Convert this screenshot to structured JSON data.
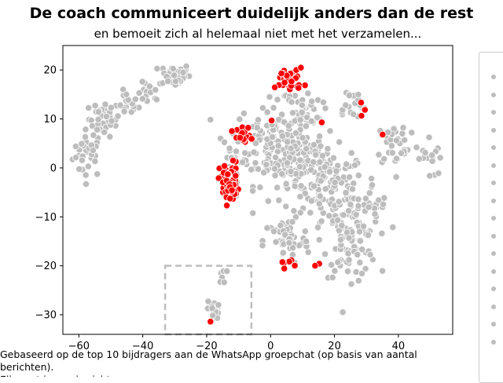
{
  "chart_data": {
    "type": "scatter",
    "title": "De coach communiceert duidelijk anders dan de rest",
    "subtitle": "en bemoeit zich al helemaal niet met het verzamelen...",
    "xlabel": "",
    "ylabel": "",
    "xlim": [
      -65,
      57
    ],
    "ylim": [
      -34,
      25
    ],
    "x_ticks": [
      "−60",
      "−40",
      "−20",
      "0",
      "20",
      "40"
    ],
    "y_ticks": [
      "−30",
      "−20",
      "−10",
      "0",
      "10",
      "20"
    ],
    "grid": false,
    "legend_placement": "right",
    "highlight_box": {
      "x": [
        -33,
        -6
      ],
      "y": [
        -20,
        -34
      ]
    },
    "colors": {
      "highlight": "#ff0000",
      "other": "#bdbdbd",
      "box": "#bdbdbd"
    },
    "series": [
      {
        "color": "#bdbdbd",
        "clusters": [
          {
            "x": -57,
            "y": 3,
            "sx": 4,
            "sy": 4,
            "n": 35
          },
          {
            "x": -52,
            "y": 10,
            "sx": 4,
            "sy": 3,
            "n": 35
          },
          {
            "x": -45,
            "y": 13,
            "sx": 3,
            "sy": 2,
            "n": 20
          },
          {
            "x": -38,
            "y": 15,
            "sx": 3,
            "sy": 2,
            "n": 15
          },
          {
            "x": -30,
            "y": 19,
            "sx": 4,
            "sy": 2,
            "n": 40
          },
          {
            "x": 0,
            "y": 5,
            "sx": 9,
            "sy": 7,
            "n": 120
          },
          {
            "x": 10,
            "y": 1,
            "sx": 9,
            "sy": 7,
            "n": 120
          },
          {
            "x": 20,
            "y": -5,
            "sx": 8,
            "sy": 7,
            "n": 100
          },
          {
            "x": 25,
            "y": -15,
            "sx": 7,
            "sy": 6,
            "n": 90
          },
          {
            "x": 5,
            "y": -15,
            "sx": 6,
            "sy": 4,
            "n": 50
          },
          {
            "x": 40,
            "y": 5,
            "sx": 6,
            "sy": 4,
            "n": 35
          },
          {
            "x": 32,
            "y": -8,
            "sx": 4,
            "sy": 4,
            "n": 25
          },
          {
            "x": 10,
            "y": 12,
            "sx": 5,
            "sy": 3,
            "n": 40
          },
          {
            "x": 25,
            "y": 13,
            "sx": 4,
            "sy": 3,
            "n": 20
          },
          {
            "x": -13,
            "y": 0,
            "sx": 3,
            "sy": 5,
            "n": 25
          },
          {
            "x": -18,
            "y": -29,
            "sx": 1.5,
            "sy": 1.5,
            "n": 22
          },
          {
            "x": -15,
            "y": -22,
            "sx": 1,
            "sy": 1.5,
            "n": 6
          },
          {
            "x": 50,
            "y": 2,
            "sx": 3,
            "sy": 4,
            "n": 15
          }
        ]
      },
      {
        "color": "#ff0000",
        "clusters": [
          {
            "x": -13,
            "y": -3,
            "sx": 2.5,
            "sy": 3.5,
            "n": 55
          },
          {
            "x": -8,
            "y": 6,
            "sx": 2,
            "sy": 2,
            "n": 15
          },
          {
            "x": 6,
            "y": 18,
            "sx": 3.5,
            "sy": 2,
            "n": 40
          },
          {
            "x": 28,
            "y": 13,
            "sx": 1.5,
            "sy": 1.5,
            "n": 3
          },
          {
            "x": 5,
            "y": -19.5,
            "sx": 2,
            "sy": 0.8,
            "n": 6
          },
          {
            "x": 15,
            "y": -20,
            "sx": 1,
            "sy": 0.5,
            "n": 2
          },
          {
            "x": -19,
            "y": -31.5,
            "sx": 0.5,
            "sy": 0.3,
            "n": 1
          },
          {
            "x": 35,
            "y": 7,
            "sx": 0.5,
            "sy": 0.5,
            "n": 1
          },
          {
            "x": 16,
            "y": 9,
            "sx": 0.5,
            "sy": 0.5,
            "n": 1
          },
          {
            "x": 0,
            "y": 10,
            "sx": 0.5,
            "sy": 0.5,
            "n": 1
          },
          {
            "x": -12,
            "y": 7.5,
            "sx": 0.5,
            "sy": 0.5,
            "n": 1
          }
        ]
      }
    ],
    "legend_entries": [
      "",
      "",
      "",
      "",
      "",
      "",
      "",
      "",
      "",
      "",
      "",
      "",
      "",
      "",
      "",
      ""
    ]
  },
  "caption": "Gebaseerd op de top 10 bijdragers aan de WhatsApp groepchat (op basis van aantal berichten).",
  "caption2": "Elk punt is een bericht ..."
}
